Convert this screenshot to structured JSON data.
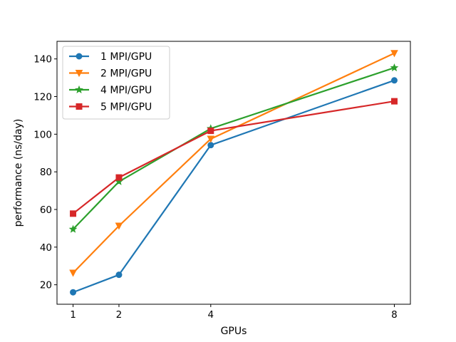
{
  "chart_data": {
    "type": "line",
    "xlabel": "GPUs",
    "ylabel": "performance (ns/day)",
    "x": [
      1,
      2,
      4,
      8
    ],
    "xticks": [
      1,
      2,
      4,
      8
    ],
    "yticks": [
      20,
      40,
      60,
      80,
      100,
      120,
      140
    ],
    "xlim": [
      0.65,
      8.35
    ],
    "ylim": [
      9.65,
      149.35
    ],
    "grid": false,
    "legend_position": "top-left",
    "series": [
      {
        "name": "1 MPI/GPU",
        "color": "#1f77b4",
        "marker": "circle",
        "values": [
          16.0,
          25.3,
          94.2,
          128.6
        ]
      },
      {
        "name": "2 MPI/GPU",
        "color": "#ff7f0e",
        "marker": "triangle-down",
        "values": [
          26.3,
          51.3,
          97.5,
          143.0
        ]
      },
      {
        "name": "4 MPI/GPU",
        "color": "#2ca02c",
        "marker": "star",
        "values": [
          49.5,
          74.8,
          103.0,
          135.3
        ]
      },
      {
        "name": "5 MPI/GPU",
        "color": "#d62728",
        "marker": "square",
        "values": [
          57.8,
          77.0,
          101.8,
          117.5
        ]
      }
    ]
  }
}
